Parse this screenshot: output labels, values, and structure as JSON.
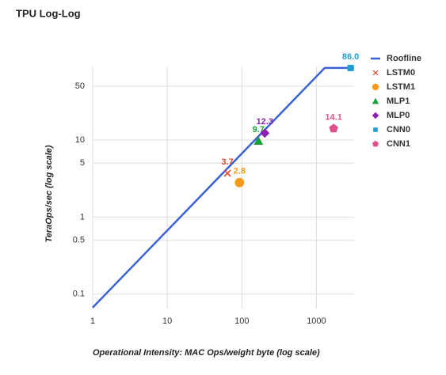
{
  "chart_data": {
    "type": "scatter",
    "title": "TPU Log-Log",
    "x_label": "Operational Intensity: MAC Ops/weight byte (log scale)",
    "y_label": "TeraOps/sec (log scale)",
    "xscale": "log",
    "yscale": "log",
    "grid": true,
    "legend": "right",
    "xlim": [
      1,
      3200
    ],
    "ylim": [
      0.065,
      90
    ],
    "xticks": [
      1,
      10,
      100,
      1000
    ],
    "yticks": [
      0.1,
      0.5,
      1,
      5,
      10,
      50
    ],
    "series": [
      {
        "name": "Roofline",
        "kind": "line",
        "color": "#3a62d6",
        "x": [
          1,
          1290,
          3200
        ],
        "values": [
          0.067,
          86,
          86
        ]
      },
      {
        "name": "LSTM0",
        "kind": "point",
        "marker": "cross",
        "color": "#e8452c",
        "x": [
          64
        ],
        "values": [
          3.7
        ],
        "value_labels": [
          "3.7"
        ]
      },
      {
        "name": "LSTM1",
        "kind": "point",
        "marker": "circle",
        "color": "#f79a1a",
        "x": [
          93
        ],
        "values": [
          2.8
        ],
        "value_labels": [
          "2.8"
        ]
      },
      {
        "name": "MLP1",
        "kind": "point",
        "marker": "triangle",
        "color": "#1a9f3a",
        "x": [
          167
        ],
        "values": [
          9.7
        ],
        "value_labels": [
          "9.7"
        ]
      },
      {
        "name": "MLP0",
        "kind": "point",
        "marker": "diamond",
        "color": "#8e1fb3",
        "x": [
          203
        ],
        "values": [
          12.3
        ],
        "value_labels": [
          "12.3"
        ]
      },
      {
        "name": "CNN0",
        "kind": "point",
        "marker": "square",
        "color": "#1e9fd4",
        "x": [
          2870
        ],
        "values": [
          86
        ],
        "value_labels": [
          "86.0"
        ]
      },
      {
        "name": "CNN1",
        "kind": "point",
        "marker": "pentagon",
        "color": "#e0508c",
        "x": [
          1700
        ],
        "values": [
          14.1
        ],
        "value_labels": [
          "14.1"
        ]
      }
    ]
  }
}
